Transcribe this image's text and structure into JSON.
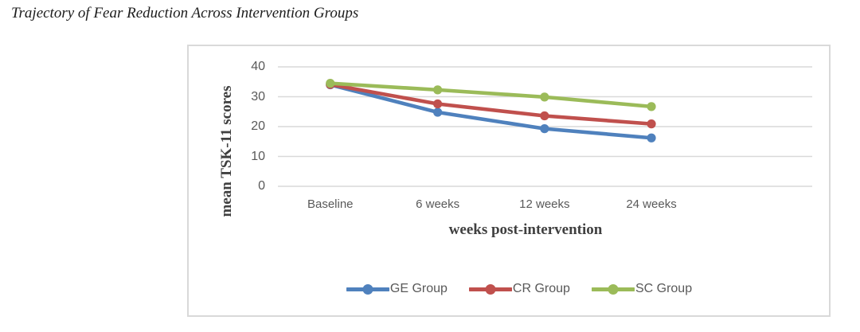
{
  "page_title": "Trajectory of Fear Reduction Across Intervention Groups",
  "chart_data": {
    "type": "line",
    "categories": [
      "Baseline",
      "6 weeks",
      "12 weeks",
      "24 weeks"
    ],
    "series": [
      {
        "name": "GE Group",
        "color": "#4F81BD",
        "values": [
          34.0,
          24.8,
          19.3,
          16.2
        ]
      },
      {
        "name": "CR Group",
        "color": "#C0504D",
        "values": [
          34.1,
          27.6,
          23.6,
          20.9
        ]
      },
      {
        "name": "SC Group",
        "color": "#9BBB59",
        "values": [
          34.5,
          32.3,
          29.9,
          26.7
        ]
      }
    ],
    "title": "Trajectory of Fear Reduction Across Intervention Groups",
    "xlabel": "weeks post-intervention",
    "ylabel": "mean TSK-11 scores",
    "ylim": [
      0,
      40
    ],
    "yticks": [
      0,
      10,
      20,
      30,
      40
    ],
    "grid": true,
    "legend_position": "bottom"
  },
  "colors": {
    "gridline": "#D9D9D9",
    "chart_border": "#D9D9D9",
    "tick_text": "#595959",
    "axis_title_text": "#404040",
    "title_text": "#1C1C1C"
  }
}
